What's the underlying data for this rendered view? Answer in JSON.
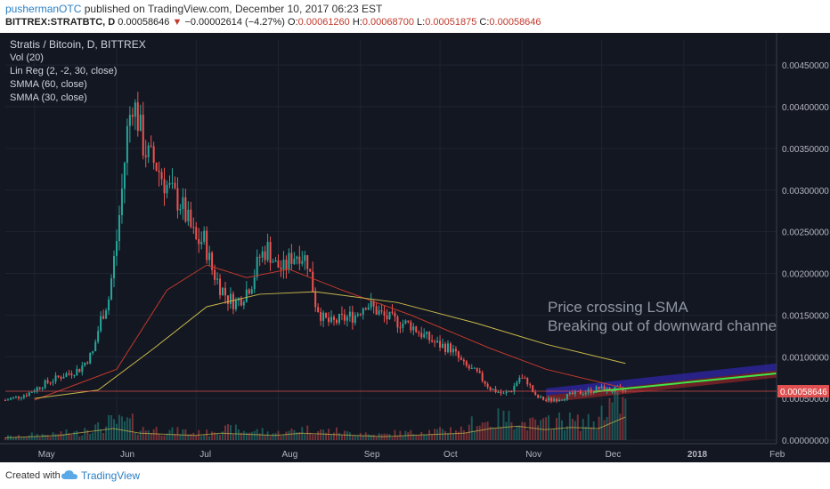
{
  "header": {
    "author": "pushermanOTC",
    "published_text": "published on TradingView.com, December 10, 2017 06:23 EST"
  },
  "quote": {
    "symbol": "BITTREX:STRATBTC, D",
    "price": "0.00058646",
    "change": "−0.00002614 (−4.27%)",
    "open_label": "O:",
    "open": "0.00061260",
    "high_label": "H:",
    "high": "0.00068700",
    "low_label": "L:",
    "low": "0.00051875",
    "close_label": "C:",
    "close": "0.00058646"
  },
  "legend": {
    "title": "Stratis / Bitcoin, D, BITTREX",
    "studies": [
      "Vol (20)",
      "Lin Reg (2, -2, 30, close)",
      "SMMA (60, close)",
      "SMMA (30, close)"
    ]
  },
  "annotation": {
    "line1": "Price crossing LSMA",
    "line2": "Breaking out of downward channel"
  },
  "price_tag": "0.00058646",
  "footer": {
    "created_with": "Created with",
    "brand": "TradingView"
  },
  "colors": {
    "background": "#131722",
    "up": "#26a69a",
    "down": "#ef5350",
    "smma60": "#c0392b",
    "smma30": "#c8b84a",
    "volume_ma": "#c8b84a",
    "channel_upper": "#3b2bd8",
    "channel_lower": "#b52a2a",
    "lsma": "#3ce84a",
    "price_line": "#e05050"
  },
  "chart_data": {
    "type": "candlestick",
    "title": "Stratis / Bitcoin, D, BITTREX",
    "x_ticks": [
      "May",
      "Jun",
      "Jul",
      "Aug",
      "Sep",
      "Oct",
      "Nov",
      "Dec",
      "2018",
      "Feb"
    ],
    "y_ticks": [
      "0.00450000",
      "0.00400000",
      "0.00350000",
      "0.00300000",
      "0.00250000",
      "0.00200000",
      "0.00150000",
      "0.00100000",
      "0.00050000",
      "0.00000000"
    ],
    "ylim": [
      0,
      0.0048
    ],
    "last_price": 0.00058646,
    "close_series": [
      [
        "2017-04-20",
        0.00048
      ],
      [
        "2017-04-28",
        0.00055
      ],
      [
        "2017-05-05",
        0.00068
      ],
      [
        "2017-05-12",
        0.00078
      ],
      [
        "2017-05-18",
        0.00085
      ],
      [
        "2017-05-23",
        0.00105
      ],
      [
        "2017-05-26",
        0.00145
      ],
      [
        "2017-05-29",
        0.0017
      ],
      [
        "2017-06-01",
        0.0024
      ],
      [
        "2017-06-03",
        0.003
      ],
      [
        "2017-06-05",
        0.0037
      ],
      [
        "2017-06-07",
        0.0041
      ],
      [
        "2017-06-09",
        0.00385
      ],
      [
        "2017-06-11",
        0.00355
      ],
      [
        "2017-06-13",
        0.0034
      ],
      [
        "2017-06-16",
        0.0033
      ],
      [
        "2017-06-19",
        0.0031
      ],
      [
        "2017-06-22",
        0.00295
      ],
      [
        "2017-06-25",
        0.00285
      ],
      [
        "2017-06-28",
        0.00262
      ],
      [
        "2017-07-01",
        0.00238
      ],
      [
        "2017-07-04",
        0.0024
      ],
      [
        "2017-07-07",
        0.00205
      ],
      [
        "2017-07-10",
        0.00185
      ],
      [
        "2017-07-13",
        0.0017
      ],
      [
        "2017-07-16",
        0.00165
      ],
      [
        "2017-07-19",
        0.00175
      ],
      [
        "2017-07-22",
        0.0019
      ],
      [
        "2017-07-25",
        0.0022
      ],
      [
        "2017-07-28",
        0.0023
      ],
      [
        "2017-07-31",
        0.0021
      ],
      [
        "2017-08-03",
        0.00205
      ],
      [
        "2017-08-06",
        0.0022
      ],
      [
        "2017-08-09",
        0.00225
      ],
      [
        "2017-08-12",
        0.00215
      ],
      [
        "2017-08-15",
        0.00165
      ],
      [
        "2017-08-18",
        0.00145
      ],
      [
        "2017-08-21",
        0.0014
      ],
      [
        "2017-08-25",
        0.00145
      ],
      [
        "2017-08-30",
        0.0015
      ],
      [
        "2017-09-03",
        0.00165
      ],
      [
        "2017-09-06",
        0.00158
      ],
      [
        "2017-09-10",
        0.00148
      ],
      [
        "2017-09-15",
        0.00142
      ],
      [
        "2017-09-20",
        0.00138
      ],
      [
        "2017-09-25",
        0.00125
      ],
      [
        "2017-09-30",
        0.00115
      ],
      [
        "2017-10-05",
        0.0011
      ],
      [
        "2017-10-10",
        0.0009
      ],
      [
        "2017-10-15",
        0.0008
      ],
      [
        "2017-10-20",
        0.00062
      ],
      [
        "2017-10-25",
        0.00055
      ],
      [
        "2017-10-28",
        0.0006
      ],
      [
        "2017-10-31",
        0.00075
      ],
      [
        "2017-11-03",
        0.0007
      ],
      [
        "2017-11-06",
        0.00052
      ],
      [
        "2017-11-10",
        0.00048
      ],
      [
        "2017-11-15",
        0.0005
      ],
      [
        "2017-11-20",
        0.00055
      ],
      [
        "2017-11-25",
        0.00058
      ],
      [
        "2017-11-30",
        0.00062
      ],
      [
        "2017-12-04",
        0.0006
      ],
      [
        "2017-12-07",
        0.00061
      ],
      [
        "2017-12-10",
        0.00058646
      ]
    ],
    "smma60": [
      [
        "2017-05-01",
        0.00048
      ],
      [
        "2017-06-01",
        0.00085
      ],
      [
        "2017-06-20",
        0.0018
      ],
      [
        "2017-07-05",
        0.0021
      ],
      [
        "2017-07-20",
        0.00195
      ],
      [
        "2017-08-05",
        0.00205
      ],
      [
        "2017-08-25",
        0.0018
      ],
      [
        "2017-09-20",
        0.0015
      ],
      [
        "2017-10-20",
        0.0011
      ],
      [
        "2017-11-10",
        0.00085
      ],
      [
        "2017-12-10",
        0.00062
      ]
    ],
    "smma30": [
      [
        "2017-05-01",
        0.0005
      ],
      [
        "2017-05-25",
        0.0006
      ],
      [
        "2017-06-15",
        0.0011
      ],
      [
        "2017-07-05",
        0.0016
      ],
      [
        "2017-07-25",
        0.00175
      ],
      [
        "2017-08-15",
        0.00178
      ],
      [
        "2017-09-15",
        0.00165
      ],
      [
        "2017-10-15",
        0.0014
      ],
      [
        "2017-11-10",
        0.00115
      ],
      [
        "2017-12-10",
        0.00092
      ]
    ],
    "lsma_projection": [
      [
        "2017-11-28",
        0.00058
      ],
      [
        "2018-02-05",
        0.0008
      ]
    ],
    "channel_upper": [
      [
        "2017-11-10",
        0.00062
      ],
      [
        "2018-02-05",
        0.00092
      ]
    ],
    "channel_lower": [
      [
        "2017-11-10",
        0.00045
      ],
      [
        "2018-02-05",
        0.00075
      ]
    ],
    "volume_scale_note": "relative",
    "volume_levels": [
      0.1,
      0.15,
      0.2,
      0.35,
      0.5,
      0.3,
      0.25,
      0.2,
      0.3,
      0.25,
      0.2,
      0.3,
      0.25,
      0.2,
      0.15,
      0.2,
      0.25,
      0.3,
      0.5,
      0.6,
      0.45,
      0.55,
      0.5,
      1.0
    ]
  }
}
